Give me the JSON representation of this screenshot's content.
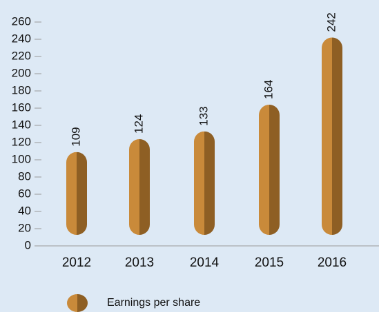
{
  "chart_data": {
    "type": "bar",
    "categories": [
      "2012",
      "2013",
      "2014",
      "2015",
      "2016"
    ],
    "series": [
      {
        "name": "Earnings per share",
        "color": "#c98a3a",
        "values": [
          109,
          124,
          133,
          164,
          242
        ]
      }
    ],
    "shade_color": "#8e5f24",
    "ylim": [
      0,
      260
    ],
    "yticks": [
      0,
      20,
      40,
      60,
      80,
      100,
      120,
      140,
      160,
      180,
      200,
      220,
      240,
      260
    ]
  }
}
